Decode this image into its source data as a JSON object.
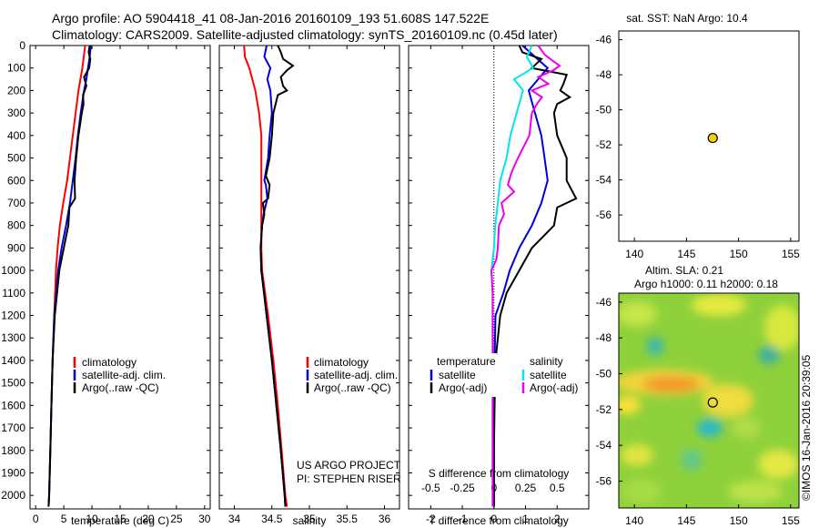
{
  "header": {
    "line1": "Argo profile: AO 5904418_41 08-Jan-2016 20160109_193 51.608S 147.522E",
    "line2": "Climatology: CARS2009. Satellite-adjusted climatology: synTS_20160109.nc (0.45d later)"
  },
  "colors": {
    "climatology": "#ff0000",
    "satellite": "#0000dd",
    "argo": "#000000",
    "sat_salinity": "#00e5ee",
    "argo_salinity": "#ee00ee",
    "marker": "#f0d000"
  },
  "side_text": "©IMOS 16-Jan-2016 20:39:05",
  "chart_data": [
    {
      "type": "line",
      "xlabel": "temperature (deg C)",
      "ylabel": "",
      "xlim": [
        -1,
        31
      ],
      "ylim": [
        2060,
        0
      ],
      "xticks": [
        "0",
        "5",
        "10",
        "15",
        "20",
        "25",
        "30"
      ],
      "yticks": [
        "0",
        "100",
        "200",
        "300",
        "400",
        "500",
        "600",
        "700",
        "800",
        "900",
        "1000",
        "1100",
        "1200",
        "1300",
        "1400",
        "1500",
        "1600",
        "1700",
        "1800",
        "1900",
        "2000"
      ],
      "legend": [
        "climatology",
        "satellite-adj. clim.",
        "Argo(..raw -QC)"
      ],
      "series": [
        {
          "name": "climatology",
          "depth": [
            0,
            100,
            200,
            300,
            400,
            500,
            600,
            700,
            800,
            900,
            1000,
            1200,
            1400,
            1600,
            1800,
            2000,
            2050
          ],
          "values": [
            8.8,
            8.3,
            7.6,
            7.1,
            6.6,
            6.1,
            5.6,
            4.9,
            4.3,
            3.9,
            3.6,
            3.3,
            3.0,
            2.8,
            2.6,
            2.4,
            2.3
          ]
        },
        {
          "name": "satellite-adj. clim.",
          "depth": [
            0,
            50,
            100,
            150,
            200,
            250,
            300,
            400,
            500,
            600,
            700,
            800,
            900,
            1000,
            1200,
            1400,
            1600,
            1800,
            2000,
            2050
          ],
          "values": [
            9.8,
            9.6,
            9.3,
            9.0,
            8.6,
            8.3,
            8.0,
            7.5,
            7.1,
            6.6,
            6.1,
            5.4,
            4.6,
            4.0,
            3.3,
            3.0,
            2.8,
            2.6,
            2.4,
            2.3
          ]
        },
        {
          "name": "Argo(..raw -QC)",
          "depth": [
            0,
            30,
            60,
            100,
            140,
            180,
            220,
            260,
            300,
            400,
            500,
            600,
            680,
            720,
            800,
            900,
            1000,
            1200,
            1400,
            1600,
            1800,
            2000,
            2050
          ],
          "values": [
            9.6,
            9.4,
            9.7,
            9.5,
            8.6,
            9.0,
            8.4,
            8.5,
            8.2,
            7.6,
            7.2,
            6.9,
            7.0,
            6.0,
            5.8,
            5.0,
            4.2,
            3.4,
            3.0,
            2.8,
            2.6,
            2.4,
            2.3
          ]
        }
      ]
    },
    {
      "type": "line",
      "xlabel": "salinity",
      "xlim": [
        33.8,
        36.2
      ],
      "ylim": [
        2060,
        0
      ],
      "xticks": [
        "34",
        "34.5",
        "35",
        "35.5",
        "36"
      ],
      "credit": [
        "US ARGO PROJECT",
        "PI: STEPHEN RISER"
      ],
      "legend": [
        "climatology",
        "satellite-adj. clim.",
        "Argo(..raw -QC)"
      ],
      "series": [
        {
          "name": "climatology",
          "depth": [
            0,
            50,
            100,
            200,
            300,
            400,
            500,
            600,
            700,
            800,
            900,
            1000,
            1200,
            1400,
            1600,
            1800,
            2000,
            2050
          ],
          "values": [
            34.13,
            34.14,
            34.2,
            34.28,
            34.33,
            34.36,
            34.36,
            34.36,
            34.36,
            34.36,
            34.36,
            34.37,
            34.45,
            34.52,
            34.58,
            34.63,
            34.68,
            34.7
          ]
        },
        {
          "name": "satellite-adj. clim.",
          "depth": [
            0,
            50,
            100,
            150,
            200,
            300,
            400,
            500,
            600,
            620,
            680,
            750,
            800,
            900,
            1000,
            1200,
            1400,
            1600,
            1800,
            2000,
            2050
          ],
          "values": [
            34.43,
            34.4,
            34.48,
            34.44,
            34.48,
            34.5,
            34.47,
            34.45,
            34.4,
            34.42,
            34.44,
            34.39,
            34.37,
            34.35,
            34.36,
            34.43,
            34.5,
            34.56,
            34.62,
            34.67,
            34.68
          ]
        },
        {
          "name": "Argo(..raw -QC)",
          "depth": [
            0,
            30,
            60,
            90,
            110,
            140,
            180,
            200,
            220,
            260,
            300,
            400,
            500,
            580,
            620,
            680,
            700,
            750,
            800,
            900,
            1000,
            1200,
            1400,
            1600,
            1800,
            2000,
            2050
          ],
          "values": [
            34.58,
            34.62,
            34.65,
            34.78,
            34.7,
            34.62,
            34.65,
            34.7,
            34.58,
            34.55,
            34.52,
            34.5,
            34.47,
            34.42,
            34.47,
            34.45,
            34.38,
            34.4,
            34.37,
            34.35,
            34.36,
            34.43,
            34.5,
            34.56,
            34.62,
            34.67,
            34.68
          ]
        }
      ]
    },
    {
      "type": "line",
      "xlabel": "T difference from climatology",
      "top_label": "S difference from climatology",
      "xlim": [
        -2.7,
        3.0
      ],
      "ylim": [
        2060,
        0
      ],
      "xticks": [
        "-2",
        "-1",
        "0",
        "1",
        "2"
      ],
      "top_ticks": [
        "-0.5",
        "-0.25",
        "0",
        "0.25",
        "0.5"
      ],
      "top_tick_values": [
        -0.5,
        -0.25,
        0,
        0.25,
        0.5
      ],
      "salinity_scale": 4,
      "legend_headers": [
        "temperature",
        "salinity"
      ],
      "legend": [
        "satellite",
        "Argo(-adj)",
        "satellite",
        "Argo(-adj)"
      ],
      "series": [
        {
          "name": "temperature satellite",
          "depth": [
            0,
            50,
            100,
            200,
            300,
            400,
            500,
            600,
            700,
            800,
            900,
            1000,
            1100,
            1200,
            1400,
            1600,
            1800,
            2000,
            2050
          ],
          "values": [
            0.9,
            1.3,
            1.7,
            1.1,
            1.3,
            1.5,
            1.6,
            1.7,
            1.5,
            1.2,
            0.8,
            0.5,
            0.3,
            0.05,
            0.02,
            0.01,
            0.0,
            0.0,
            0.0
          ]
        },
        {
          "name": "temperature Argo(-adj)",
          "depth": [
            0,
            30,
            60,
            100,
            130,
            170,
            200,
            230,
            260,
            300,
            400,
            500,
            600,
            680,
            720,
            800,
            900,
            1000,
            1100,
            1200,
            1400,
            1600,
            1800,
            2000,
            2050
          ],
          "values": [
            0.8,
            0.9,
            1.5,
            1.2,
            2.3,
            2.2,
            2.1,
            2.4,
            2.0,
            1.9,
            2.0,
            2.3,
            2.3,
            2.6,
            2.0,
            1.9,
            1.2,
            0.8,
            0.4,
            0.2,
            0.05,
            0.02,
            0.0,
            0.0,
            0.0
          ]
        },
        {
          "name": "salinity satellite",
          "depth": [
            0,
            50,
            100,
            150,
            200,
            300,
            400,
            500,
            600,
            700,
            800,
            900,
            1000,
            1100,
            1200,
            1400,
            1600,
            1800,
            2000,
            2050
          ],
          "values": [
            0.3,
            0.26,
            0.31,
            0.16,
            0.23,
            0.18,
            0.13,
            0.1,
            0.05,
            0.03,
            0.01,
            0.0,
            -0.02,
            -0.01,
            -0.01,
            -0.01,
            -0.01,
            -0.01,
            -0.01,
            -0.01
          ]
        },
        {
          "name": "salinity Argo(-adj)",
          "depth": [
            0,
            40,
            70,
            90,
            110,
            140,
            170,
            200,
            230,
            260,
            300,
            400,
            500,
            550,
            580,
            620,
            650,
            700,
            750,
            800,
            900,
            950,
            1000,
            1100,
            1200,
            1400,
            1600,
            1800,
            2000,
            2050
          ],
          "values": [
            0.35,
            0.4,
            0.47,
            0.52,
            0.47,
            0.35,
            0.43,
            0.3,
            0.38,
            0.34,
            0.3,
            0.28,
            0.19,
            0.15,
            0.13,
            0.11,
            0.16,
            0.06,
            0.08,
            0.04,
            0.03,
            0.02,
            -0.02,
            -0.01,
            -0.01,
            -0.01,
            -0.01,
            -0.01,
            -0.01,
            -0.01
          ]
        }
      ]
    },
    {
      "type": "scatter",
      "title": "sat. SST: NaN Argo: 10.4",
      "xlim": [
        138.5,
        155.8
      ],
      "ylim": [
        -57.5,
        -45.5
      ],
      "xticks": [
        "140",
        "145",
        "150",
        "155"
      ],
      "yticks": [
        "-46",
        "-48",
        "-50",
        "-52",
        "-54",
        "-56"
      ],
      "points": [
        {
          "x": 147.522,
          "y": -51.608
        }
      ]
    },
    {
      "type": "heatmap",
      "title": "Altim. SLA: 0.21",
      "subtitle": "Argo h1000: 0.11 h2000: 0.18",
      "xlim": [
        138.5,
        155.8
      ],
      "ylim": [
        -57.5,
        -45.5
      ],
      "xticks": [
        "140",
        "145",
        "150",
        "155"
      ],
      "yticks": [
        "-46",
        "-48",
        "-50",
        "-52",
        "-54",
        "-56"
      ],
      "points": [
        {
          "x": 147.522,
          "y": -51.608
        }
      ]
    }
  ]
}
